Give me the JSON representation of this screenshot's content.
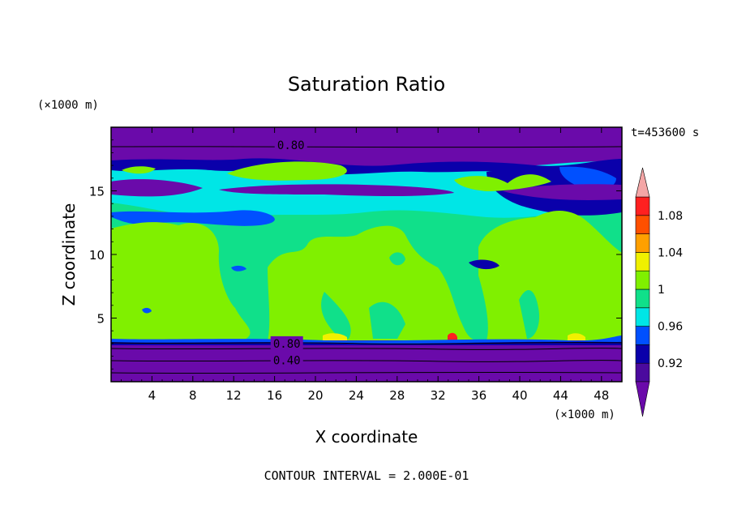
{
  "chart_data": {
    "type": "heatmap",
    "title": "Saturation Ratio",
    "xlabel": "X coordinate",
    "ylabel": "Z coordinate",
    "x_unit": "(×1000 m)",
    "y_unit": "(×1000 m)",
    "time_label": "t=453600 s",
    "footer": "CONTOUR INTERVAL = 2.000E-01",
    "xlim": [
      0,
      50
    ],
    "ylim": [
      0,
      20
    ],
    "x_ticks": [
      "4",
      "8",
      "12",
      "16",
      "20",
      "24",
      "28",
      "32",
      "36",
      "40",
      "44",
      "48"
    ],
    "x_tick_values": [
      4,
      8,
      12,
      16,
      20,
      24,
      28,
      32,
      36,
      40,
      44,
      48
    ],
    "y_ticks": [
      "5",
      "10",
      "15"
    ],
    "y_tick_values": [
      5,
      10,
      15
    ],
    "contour_labels": [
      {
        "text": "0.80",
        "x": 17.6,
        "y": 18.6
      },
      {
        "text": "0.80",
        "x": 17.2,
        "y": 3.0
      },
      {
        "text": "0.40",
        "x": 17.2,
        "y": 1.7
      }
    ],
    "colorbar": {
      "tick_labels": [
        "1.08",
        "1.04",
        "1",
        "0.96",
        "0.92"
      ],
      "tick_values": [
        1.08,
        1.04,
        1.0,
        0.96,
        0.92
      ],
      "levels": [
        0.9,
        0.92,
        0.94,
        0.96,
        0.98,
        1.0,
        1.02,
        1.04,
        1.06,
        1.08,
        1.1
      ],
      "colors": [
        "#4b0a9e",
        "#0a00aa",
        "#0050ff",
        "#00e6e6",
        "#10e08a",
        "#80f000",
        "#f0f000",
        "#ffa000",
        "#ff5000",
        "#ff2020"
      ],
      "under_color": "#6a0aaa",
      "over_color": "#f4a6a6"
    },
    "colors": {
      "deep_purple": "#6a0aaa",
      "dark_blue": "#0a00aa",
      "blue": "#0050ff",
      "cyan": "#00e6e6",
      "teal_green": "#10e08a",
      "yellow_green": "#80f000",
      "yellow": "#f0f000",
      "orange": "#ffa000",
      "red": "#ff2020"
    }
  }
}
